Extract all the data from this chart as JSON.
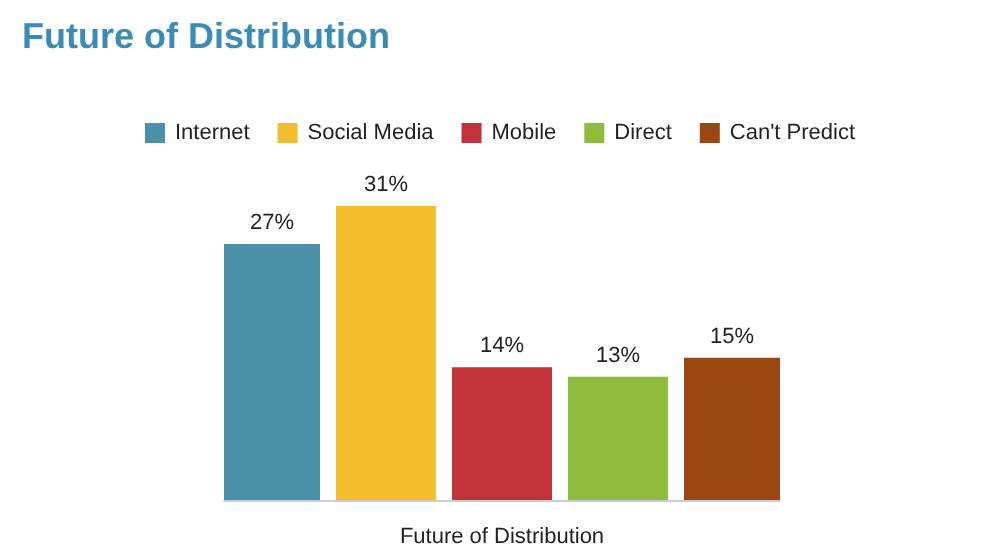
{
  "chart_data": {
    "type": "bar",
    "title": "Future of Distribution",
    "xlabel": "Future of Distribution",
    "categories": [
      null
    ],
    "legend": "top",
    "series": [
      {
        "name": "Internet",
        "color": "#4a90a8",
        "values": [
          27
        ],
        "value_labels": [
          "27%"
        ]
      },
      {
        "name": "Social Media",
        "color": "#f2be2c",
        "values": [
          31
        ],
        "value_labels": [
          "31%"
        ]
      },
      {
        "name": "Mobile",
        "color": "#c1323a",
        "values": [
          14
        ],
        "value_labels": [
          "14%"
        ]
      },
      {
        "name": "Direct",
        "color": "#8fbc3c",
        "values": [
          13
        ],
        "value_labels": [
          "13%"
        ]
      },
      {
        "name": "Can't Predict",
        "color": "#9a4712",
        "values": [
          15
        ],
        "value_labels": [
          "15%"
        ]
      }
    ]
  }
}
